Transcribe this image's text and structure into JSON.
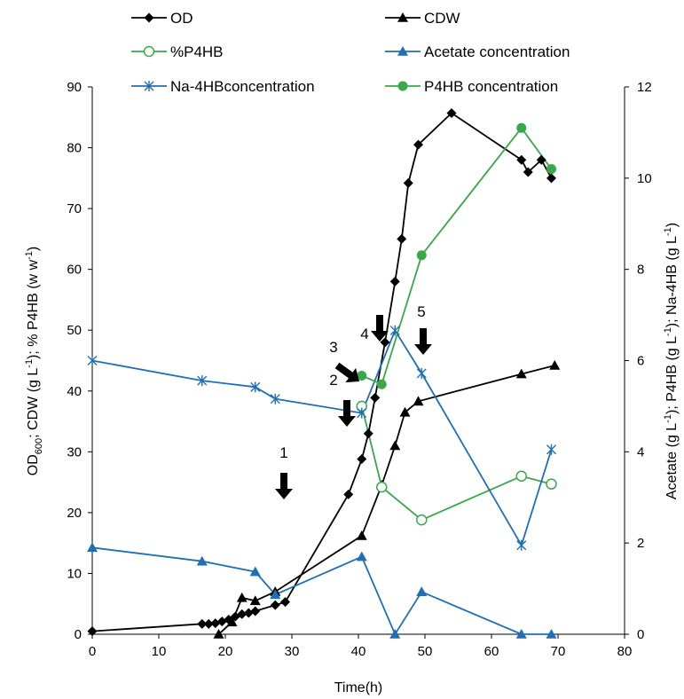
{
  "chart_data": {
    "type": "line",
    "xlabel": "Time(h)",
    "ylabel_left": "OD600; CDW (g L-1); % P4HB (w w-1)",
    "ylabel_right": "Acetate (g L-1); P4HB (g L-1); Na-4HB (g L-1)",
    "xlim": [
      0,
      80
    ],
    "xticks": [
      "0",
      "10",
      "20",
      "30",
      "40",
      "50",
      "60",
      "70",
      "80"
    ],
    "ylim_left": [
      0,
      90
    ],
    "yticks_left": [
      "0",
      "10",
      "20",
      "30",
      "40",
      "50",
      "60",
      "70",
      "80",
      "90"
    ],
    "ylim_right": [
      0,
      12
    ],
    "yticks_right": [
      "0",
      "2",
      "4",
      "6",
      "8",
      "10",
      "12"
    ],
    "grid": false,
    "legend_placement": "top",
    "series": [
      {
        "name": "OD",
        "axis": "left",
        "color": "#000000",
        "marker": "diamond-filled",
        "points": [
          [
            0,
            0.5
          ],
          [
            16.5,
            1.7
          ],
          [
            17.5,
            1.7
          ],
          [
            18.5,
            1.8
          ],
          [
            19.5,
            2.1
          ],
          [
            20.5,
            2.4
          ],
          [
            21.5,
            2.9
          ],
          [
            22.5,
            3.3
          ],
          [
            23.5,
            3.5
          ],
          [
            24.5,
            3.8
          ],
          [
            27.5,
            4.8
          ],
          [
            29,
            5.3
          ],
          [
            38.5,
            23
          ],
          [
            40.5,
            28.8
          ],
          [
            41.5,
            33
          ],
          [
            42.5,
            38.9
          ],
          [
            44,
            48
          ],
          [
            45.5,
            58
          ],
          [
            46.5,
            65
          ],
          [
            47.5,
            74.2
          ],
          [
            49,
            80.5
          ],
          [
            54,
            85.7
          ],
          [
            64.5,
            78
          ],
          [
            65.5,
            76
          ],
          [
            67.5,
            78
          ],
          [
            69,
            75
          ]
        ]
      },
      {
        "name": "CDW",
        "axis": "left",
        "color": "#000000",
        "marker": "triangle-filled",
        "points": [
          [
            19,
            0
          ],
          [
            21,
            2
          ],
          [
            22.5,
            6
          ],
          [
            24.5,
            5.5
          ],
          [
            27.5,
            7
          ],
          [
            40.5,
            16.2
          ],
          [
            43.5,
            24.5
          ],
          [
            45.5,
            31
          ],
          [
            47,
            36.5
          ],
          [
            49,
            38.3
          ],
          [
            64.5,
            42.8
          ],
          [
            69.5,
            44.2
          ]
        ]
      },
      {
        "name": "%P4HB",
        "axis": "left",
        "color": "#3aa84a",
        "marker": "circle-open",
        "points": [
          [
            40.5,
            37.5
          ],
          [
            43.5,
            24.2
          ],
          [
            49.5,
            18.8
          ],
          [
            64.5,
            26
          ],
          [
            69,
            24.7
          ]
        ]
      },
      {
        "name": "Acetate concentration",
        "axis": "right",
        "color": "#1f6fb5",
        "marker": "triangle-filled",
        "points": [
          [
            0,
            1.9
          ],
          [
            16.5,
            1.6
          ],
          [
            24.5,
            1.37
          ],
          [
            27.5,
            0.87
          ],
          [
            40.5,
            1.7
          ],
          [
            45.5,
            0
          ],
          [
            49.5,
            0.93
          ],
          [
            64.5,
            0
          ],
          [
            69,
            0
          ]
        ]
      },
      {
        "name": "Na-4HBconcentration",
        "axis": "right",
        "color": "#1f6fb5",
        "marker": "asterisk",
        "points": [
          [
            0,
            6
          ],
          [
            16.5,
            5.56
          ],
          [
            24.5,
            5.42
          ],
          [
            27.5,
            5.16
          ],
          [
            40.5,
            4.85
          ],
          [
            45.5,
            6.66
          ],
          [
            49.5,
            5.72
          ],
          [
            64.5,
            1.95
          ],
          [
            69,
            4.05
          ]
        ]
      },
      {
        "name": "P4HB concentration",
        "axis": "right",
        "color": "#3aa84a",
        "marker": "circle-filled",
        "points": [
          [
            40.5,
            5.67
          ],
          [
            43.5,
            5.48
          ],
          [
            49.5,
            8.31
          ],
          [
            64.5,
            11.1
          ],
          [
            69,
            10.2
          ]
        ]
      }
    ],
    "annotations": [
      {
        "label": "1",
        "x": 29,
        "y": 12
      },
      {
        "label": "2",
        "x": 39,
        "y": 30
      },
      {
        "label": "3",
        "x": 39.5,
        "y": 42
      },
      {
        "label": "4",
        "x": 43.5,
        "y": 49
      },
      {
        "label": "5",
        "x": 49,
        "y": 48
      }
    ]
  }
}
